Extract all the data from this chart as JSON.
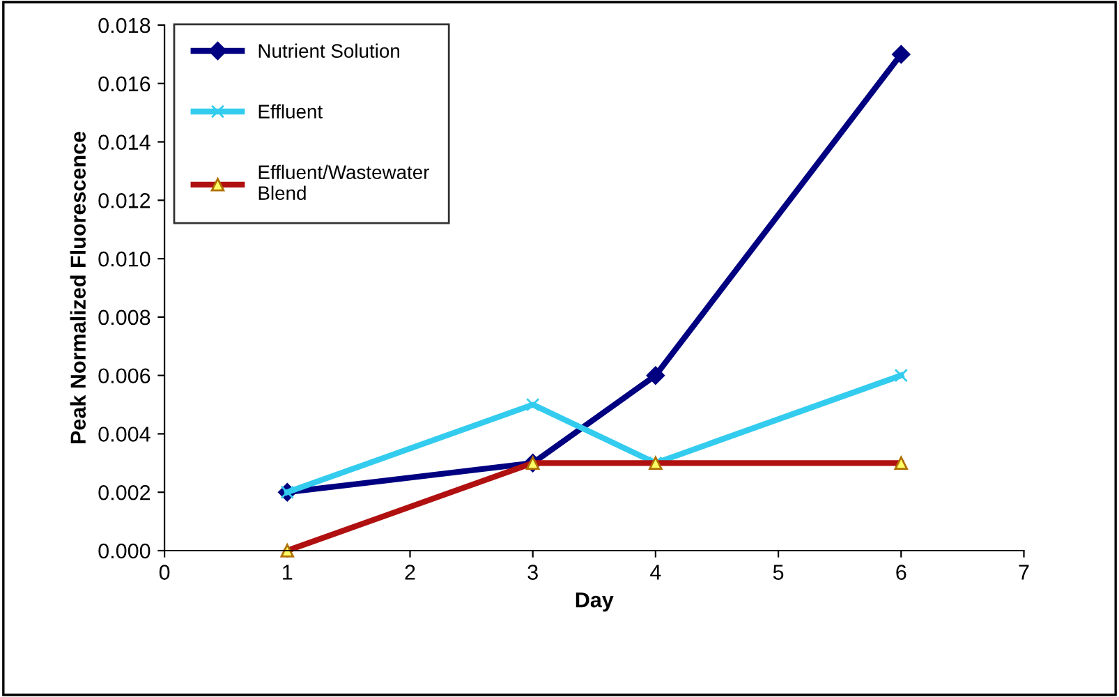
{
  "chart_data": {
    "type": "line",
    "xlabel": "Day",
    "ylabel": "Peak Normalized Fluorescence",
    "x": [
      1,
      3,
      4,
      6
    ],
    "series": [
      {
        "name": "Nutrient Solution",
        "color": "#000080",
        "marker": "diamond",
        "values": [
          0.002,
          0.003,
          0.006,
          0.017
        ]
      },
      {
        "name": "Effluent",
        "color": "#33ccee",
        "marker": "cross",
        "values": [
          0.002,
          0.005,
          0.003,
          0.006
        ]
      },
      {
        "name": "Effluent/Wastewater\nBlend",
        "color": "#b01010",
        "marker": "triangle",
        "values": [
          0.0,
          0.003,
          0.003,
          0.003
        ]
      }
    ],
    "xlim": [
      0,
      7
    ],
    "xticks": [
      0,
      1,
      2,
      3,
      4,
      5,
      6,
      7
    ],
    "ylim": [
      0,
      0.018
    ],
    "yticks": [
      {
        "value": 0,
        "label": "0.000"
      },
      {
        "value": 0.002,
        "label": "0.002"
      },
      {
        "value": 0.004,
        "label": "0.004"
      },
      {
        "value": 0.006,
        "label": "0.006"
      },
      {
        "value": 0.008,
        "label": "0.008"
      },
      {
        "value": 0.01,
        "label": "0.010"
      },
      {
        "value": 0.012,
        "label": "0.012"
      },
      {
        "value": 0.014,
        "label": "0.014"
      },
      {
        "value": 0.016,
        "label": "0.016"
      },
      {
        "value": 0.018,
        "label": "0.018"
      }
    ],
    "grid": false,
    "legend": "top left",
    "line_style": "solid"
  }
}
